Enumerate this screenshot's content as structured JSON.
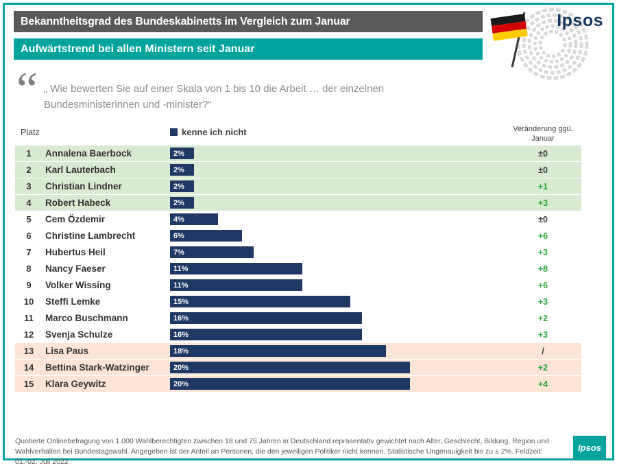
{
  "brand": {
    "name": "Ipsos"
  },
  "header": {
    "title": "Bekanntheitsgrad des Bundeskabinetts im Vergleich zum Januar",
    "subtitle": "Aufwärtstrend bei allen Ministern seit Januar"
  },
  "quote": {
    "mark": "“",
    "text": "„ Wie bewerten Sie auf einer Skala von 1 bis 10 die Arbeit … der einzelnen Bundesministerinnen und -minister?“"
  },
  "table": {
    "rank_header": "Platz",
    "legend_label": "kenne ich nicht",
    "change_header": "Veränderung ggü. Januar",
    "rows": [
      {
        "rank": "1",
        "name": "Annalena Baerbock",
        "value": 2,
        "label": "2%",
        "change": "±0",
        "change_color": "dark",
        "bg": "green"
      },
      {
        "rank": "2",
        "name": "Karl Lauterbach",
        "value": 2,
        "label": "2%",
        "change": "±0",
        "change_color": "dark",
        "bg": "green"
      },
      {
        "rank": "3",
        "name": "Christian Lindner",
        "value": 2,
        "label": "2%",
        "change": "+1",
        "change_color": "green",
        "bg": "green"
      },
      {
        "rank": "4",
        "name": "Robert Habeck",
        "value": 2,
        "label": "2%",
        "change": "+3",
        "change_color": "green",
        "bg": "green"
      },
      {
        "rank": "5",
        "name": "Cem Özdemir",
        "value": 4,
        "label": "4%",
        "change": "±0",
        "change_color": "dark",
        "bg": "white"
      },
      {
        "rank": "6",
        "name": "Christine Lambrecht",
        "value": 6,
        "label": "6%",
        "change": "+6",
        "change_color": "green",
        "bg": "white"
      },
      {
        "rank": "7",
        "name": "Hubertus Heil",
        "value": 7,
        "label": "7%",
        "change": "+3",
        "change_color": "green",
        "bg": "white"
      },
      {
        "rank": "8",
        "name": "Nancy Faeser",
        "value": 11,
        "label": "11%",
        "change": "+8",
        "change_color": "green",
        "bg": "white"
      },
      {
        "rank": "9",
        "name": "Volker Wissing",
        "value": 11,
        "label": "11%",
        "change": "+6",
        "change_color": "green",
        "bg": "white"
      },
      {
        "rank": "10",
        "name": "Steffi Lemke",
        "value": 15,
        "label": "15%",
        "change": "+3",
        "change_color": "green",
        "bg": "white"
      },
      {
        "rank": "11",
        "name": "Marco Buschmann",
        "value": 16,
        "label": "16%",
        "change": "+2",
        "change_color": "green",
        "bg": "white"
      },
      {
        "rank": "12",
        "name": "Svenja Schulze",
        "value": 16,
        "label": "16%",
        "change": "+3",
        "change_color": "green",
        "bg": "white"
      },
      {
        "rank": "13",
        "name": "Lisa Paus",
        "value": 18,
        "label": "18%",
        "change": "/",
        "change_color": "dark",
        "bg": "peach"
      },
      {
        "rank": "14",
        "name": "Bettina Stark-Watzinger",
        "value": 20,
        "label": "20%",
        "change": "+2",
        "change_color": "green",
        "bg": "peach"
      },
      {
        "rank": "15",
        "name": "Klara Geywitz",
        "value": 20,
        "label": "20%",
        "change": "+4",
        "change_color": "green",
        "bg": "peach"
      }
    ]
  },
  "footer": {
    "text": "Quotierte Onlinebefragung von 1.000 Wahlberechtigten zwischen 18 und 75 Jahren in Deutschland repräsentativ gewichtet nach Alter, Geschlecht, Bildung, Region und Wahlverhalten bei Bundestagswahl. Angegeben ist der Anteil an Personen, die den jeweiligen Politiker nicht kennen. Statistische Ungenauigkeit bis zu ± 2%. Feldzeit: 01.-02. Juli 2022"
  },
  "colors": {
    "teal": "#00a49d",
    "header_gray": "#595959",
    "bar_navy": "#1f3864",
    "row_green": "#d9ead3",
    "row_peach": "#fce4d6",
    "change_green": "#2fa83c"
  },
  "chart_data": {
    "type": "bar",
    "title": "Bekanntheitsgrad des Bundeskabinetts im Vergleich zum Januar",
    "subtitle": "Aufwärtstrend bei allen Ministern seit Januar",
    "series_label": "kenne ich nicht",
    "categories": [
      "Annalena Baerbock",
      "Karl Lauterbach",
      "Christian Lindner",
      "Robert Habeck",
      "Cem Özdemir",
      "Christine Lambrecht",
      "Hubertus Heil",
      "Nancy Faeser",
      "Volker Wissing",
      "Steffi Lemke",
      "Marco Buschmann",
      "Svenja Schulze",
      "Lisa Paus",
      "Bettina Stark-Watzinger",
      "Klara Geywitz"
    ],
    "values": [
      2,
      2,
      2,
      2,
      4,
      6,
      7,
      11,
      11,
      15,
      16,
      16,
      18,
      20,
      20
    ],
    "changes_vs_january": [
      "±0",
      "±0",
      "+1",
      "+3",
      "±0",
      "+6",
      "+3",
      "+8",
      "+6",
      "+3",
      "+2",
      "+3",
      "/",
      "+2",
      "+4"
    ],
    "ranks": [
      1,
      2,
      3,
      4,
      5,
      6,
      7,
      8,
      9,
      10,
      11,
      12,
      13,
      14,
      15
    ],
    "unit": "%",
    "xlim": [
      0,
      20
    ],
    "orientation": "horizontal",
    "legend_position": "top",
    "grid": false
  }
}
